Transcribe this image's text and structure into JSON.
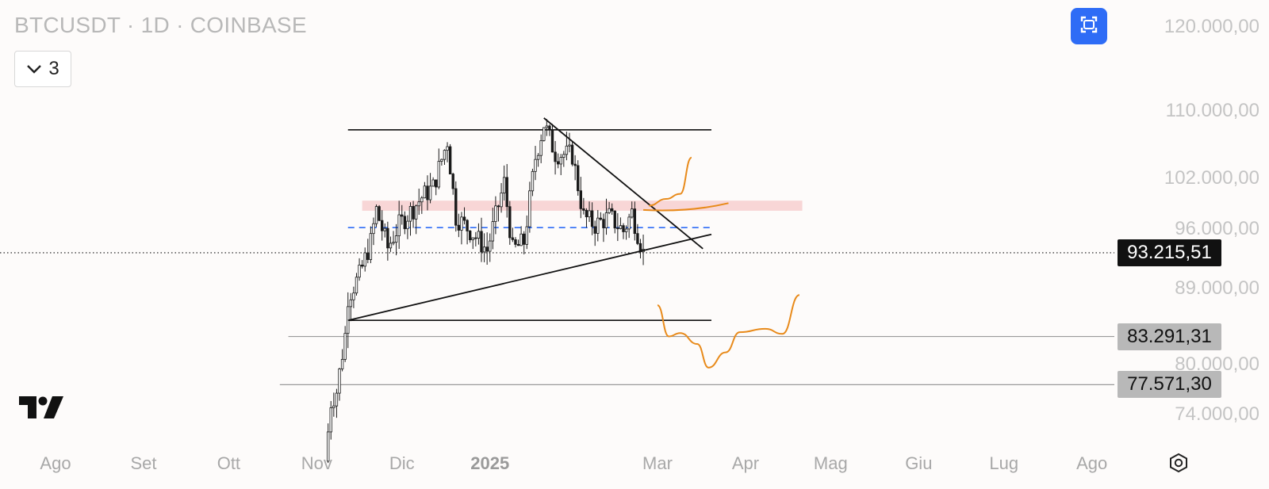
{
  "header": {
    "title": "BTCUSDT · 1D · COINBASE",
    "indicator_count": "3"
  },
  "colors": {
    "background": "#fdfbfa",
    "candle": "#1a1a1a",
    "annotation_orange": "#e88a1a",
    "dashed_blue": "#2e6cf6",
    "resistance_zone": "#f5c6c6",
    "expand_button": "#2e6cf6"
  },
  "icons": {
    "indicators_toggle": "chevron-down-icon",
    "fullscreen": "fullscreen-icon",
    "logo": "tradingview-logo",
    "settings": "settings-icon"
  },
  "price_axis": {
    "ticks": [
      {
        "value": 120000,
        "label": "120.000,00"
      },
      {
        "value": 110000,
        "label": "110.000,00"
      },
      {
        "value": 102000,
        "label": "102.000,00"
      },
      {
        "value": 96000,
        "label": "96.000,00"
      },
      {
        "value": 89000,
        "label": "89.000,00"
      },
      {
        "value": 80000,
        "label": "80.000,00"
      },
      {
        "value": 74000,
        "label": "74.000,00"
      }
    ],
    "current_price": {
      "value": 93215.51,
      "label": "93.215,51"
    },
    "levels": [
      {
        "value": 83291.31,
        "label": "83.291,31"
      },
      {
        "value": 77571.3,
        "label": "77.571,30"
      }
    ]
  },
  "time_axis": {
    "labels": [
      {
        "label": "Ago",
        "date": "2024-08-01",
        "bold": false
      },
      {
        "label": "Set",
        "date": "2024-09-01",
        "bold": false
      },
      {
        "label": "Ott",
        "date": "2024-10-01",
        "bold": false
      },
      {
        "label": "Nov",
        "date": "2024-11-01",
        "bold": false
      },
      {
        "label": "Dic",
        "date": "2024-12-01",
        "bold": false
      },
      {
        "label": "2025",
        "date": "2025-01-01",
        "bold": true
      },
      {
        "label": "Mar",
        "date": "2025-03-01",
        "bold": false
      },
      {
        "label": "Apr",
        "date": "2025-04-01",
        "bold": false
      },
      {
        "label": "Mag",
        "date": "2025-05-01",
        "bold": false
      },
      {
        "label": "Giu",
        "date": "2025-06-01",
        "bold": false
      },
      {
        "label": "Lug",
        "date": "2025-07-01",
        "bold": false
      },
      {
        "label": "Ago",
        "date": "2025-08-01",
        "bold": false
      }
    ]
  },
  "chart_data": {
    "type": "candlestick",
    "symbol": "BTCUSDT",
    "interval": "1D",
    "exchange": "COINBASE",
    "y_range": [
      71500,
      121500
    ],
    "close_path": [
      {
        "date": "2024-11-04",
        "price": 68500
      },
      {
        "date": "2024-11-06",
        "price": 75500
      },
      {
        "date": "2024-11-08",
        "price": 76800
      },
      {
        "date": "2024-11-11",
        "price": 83500
      },
      {
        "date": "2024-11-12",
        "price": 88000
      },
      {
        "date": "2024-11-16",
        "price": 90500
      },
      {
        "date": "2024-11-20",
        "price": 94500
      },
      {
        "date": "2024-11-22",
        "price": 98300
      },
      {
        "date": "2024-11-26",
        "price": 93800
      },
      {
        "date": "2024-11-30",
        "price": 96500
      },
      {
        "date": "2024-12-05",
        "price": 98500
      },
      {
        "date": "2024-12-08",
        "price": 99800
      },
      {
        "date": "2024-12-12",
        "price": 101000
      },
      {
        "date": "2024-12-17",
        "price": 106500
      },
      {
        "date": "2024-12-20",
        "price": 97500
      },
      {
        "date": "2024-12-26",
        "price": 95500
      },
      {
        "date": "2024-12-31",
        "price": 93500
      },
      {
        "date": "2025-01-06",
        "price": 101500
      },
      {
        "date": "2025-01-09",
        "price": 93500
      },
      {
        "date": "2025-01-13",
        "price": 94500
      },
      {
        "date": "2025-01-17",
        "price": 104500
      },
      {
        "date": "2025-01-20",
        "price": 108500
      },
      {
        "date": "2025-01-24",
        "price": 105000
      },
      {
        "date": "2025-01-30",
        "price": 104800
      },
      {
        "date": "2025-02-03",
        "price": 97500
      },
      {
        "date": "2025-02-07",
        "price": 96500
      },
      {
        "date": "2025-02-12",
        "price": 97500
      },
      {
        "date": "2025-02-17",
        "price": 95800
      },
      {
        "date": "2025-02-20",
        "price": 98000
      },
      {
        "date": "2025-02-24",
        "price": 93200
      }
    ],
    "drawings": {
      "horizontal_lines": [
        {
          "price": 107800,
          "from": "2024-11-12",
          "to": "2025-03-20"
        },
        {
          "price": 85200,
          "from": "2024-11-12",
          "to": "2025-03-20"
        },
        {
          "price": 83291.31,
          "from": "2024-10-22",
          "to": "2025-08-31"
        },
        {
          "price": 77571.3,
          "from": "2024-10-19",
          "to": "2025-08-31"
        }
      ],
      "resistance_zone": {
        "from": "2024-11-17",
        "to": "2025-04-21",
        "top": 99400,
        "bottom": 98200
      },
      "dashed_line": {
        "price": 96200,
        "from": "2024-11-12",
        "to": "2025-03-20"
      },
      "triangle": {
        "upper": [
          {
            "date": "2025-01-20",
            "price": 109200
          },
          {
            "date": "2025-03-17",
            "price": 93700
          }
        ],
        "lower": [
          {
            "date": "2024-11-12",
            "price": 85200
          },
          {
            "date": "2025-03-20",
            "price": 95400
          }
        ]
      },
      "projection_up": [
        {
          "date": "2025-02-26",
          "price": 98800
        },
        {
          "date": "2025-03-04",
          "price": 99600
        },
        {
          "date": "2025-03-09",
          "price": 100200
        },
        {
          "date": "2025-03-13",
          "price": 104500
        }
      ],
      "projection_down": [
        {
          "date": "2025-03-01",
          "price": 87000
        },
        {
          "date": "2025-03-05",
          "price": 83300
        },
        {
          "date": "2025-03-09",
          "price": 83700
        },
        {
          "date": "2025-03-15",
          "price": 82400
        },
        {
          "date": "2025-03-19",
          "price": 79600
        },
        {
          "date": "2025-03-25",
          "price": 81400
        },
        {
          "date": "2025-03-30",
          "price": 83800
        },
        {
          "date": "2025-04-08",
          "price": 84200
        },
        {
          "date": "2025-04-14",
          "price": 83600
        },
        {
          "date": "2025-04-20",
          "price": 88200
        }
      ]
    }
  }
}
